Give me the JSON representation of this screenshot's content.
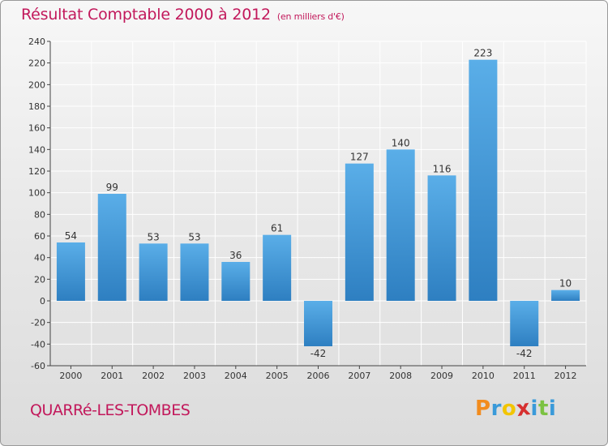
{
  "header": {
    "title": "Résultat Comptable 2000 à 2012",
    "subtitle": "(en milliers d'€)"
  },
  "footer": {
    "commune": "QUARRé-LES-TOMBES",
    "logo_letters": [
      "P",
      "r",
      "o",
      "x",
      "i",
      "t",
      "i"
    ],
    "logo_colors": [
      "#f28c1e",
      "#3a9ad9",
      "#f2c500",
      "#d62f2f",
      "#3a9ad9",
      "#7cc242",
      "#3a9ad9"
    ]
  },
  "colors": {
    "bar_light": "#5aaee8",
    "bar_dark": "#2e7fc1",
    "grid": "#ffffff",
    "axis": "#444444"
  },
  "chart_data": {
    "type": "bar",
    "title": "Résultat Comptable 2000 à 2012",
    "subtitle": "(en milliers d'€)",
    "xlabel": "",
    "ylabel": "",
    "categories": [
      "2000",
      "2001",
      "2002",
      "2003",
      "2004",
      "2005",
      "2006",
      "2007",
      "2008",
      "2009",
      "2010",
      "2011",
      "2012"
    ],
    "values": [
      54,
      99,
      53,
      53,
      36,
      61,
      -42,
      127,
      140,
      116,
      223,
      -42,
      10
    ],
    "ylim": [
      -60,
      240
    ],
    "yticks": [
      -60,
      -40,
      -20,
      0,
      20,
      40,
      60,
      80,
      100,
      120,
      140,
      160,
      180,
      200,
      220,
      240
    ],
    "grid": true
  }
}
